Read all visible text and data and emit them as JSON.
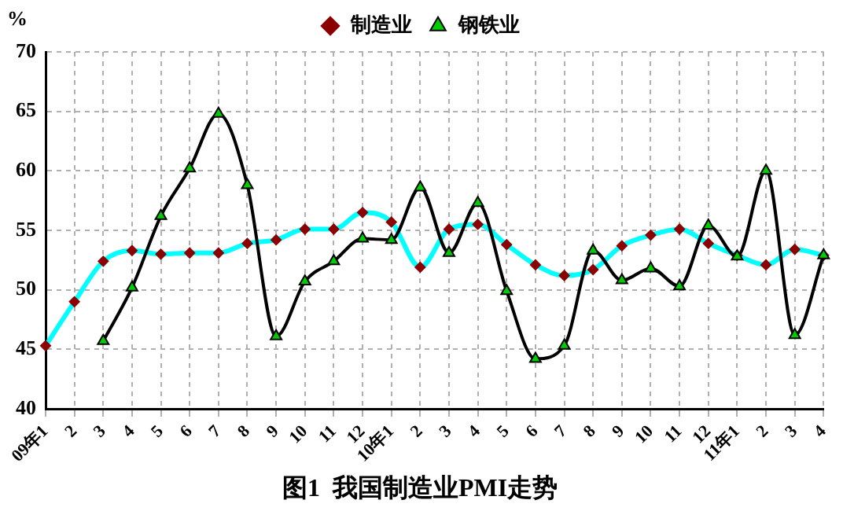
{
  "chart_data": {
    "type": "line",
    "title": "图1  我国制造业PMI走势",
    "ylabel": "%",
    "categories": [
      "09年1",
      "2",
      "3",
      "4",
      "5",
      "6",
      "7",
      "8",
      "9",
      "10",
      "11",
      "12",
      "10年1",
      "2",
      "3",
      "4",
      "5",
      "6",
      "7",
      "8",
      "9",
      "10",
      "11",
      "12",
      "11年1",
      "2",
      "3",
      "4"
    ],
    "series": [
      {
        "name": "制造业",
        "color": "#00ffff",
        "marker": "diamond",
        "values": [
          45.3,
          49.0,
          52.4,
          53.3,
          53.0,
          53.1,
          53.1,
          53.9,
          54.2,
          55.1,
          55.1,
          56.5,
          55.7,
          51.9,
          55.1,
          55.5,
          53.8,
          52.1,
          51.2,
          51.7,
          53.7,
          54.6,
          55.1,
          53.9,
          52.9,
          52.1,
          53.4,
          52.9
        ]
      },
      {
        "name": "钢铁业",
        "color": "#000000",
        "marker": "triangle",
        "values": [
          null,
          null,
          45.7,
          50.2,
          56.2,
          60.2,
          64.8,
          58.8,
          46.1,
          50.7,
          52.4,
          54.3,
          54.2,
          58.6,
          53.1,
          57.3,
          49.9,
          44.2,
          45.3,
          53.3,
          50.8,
          51.8,
          50.3,
          55.4,
          52.8,
          60.0,
          46.2,
          52.9
        ]
      }
    ],
    "ylim": [
      40,
      70
    ],
    "yticks": [
      40,
      45,
      50,
      55,
      60,
      65,
      70
    ],
    "grid": true,
    "legend": "top"
  }
}
